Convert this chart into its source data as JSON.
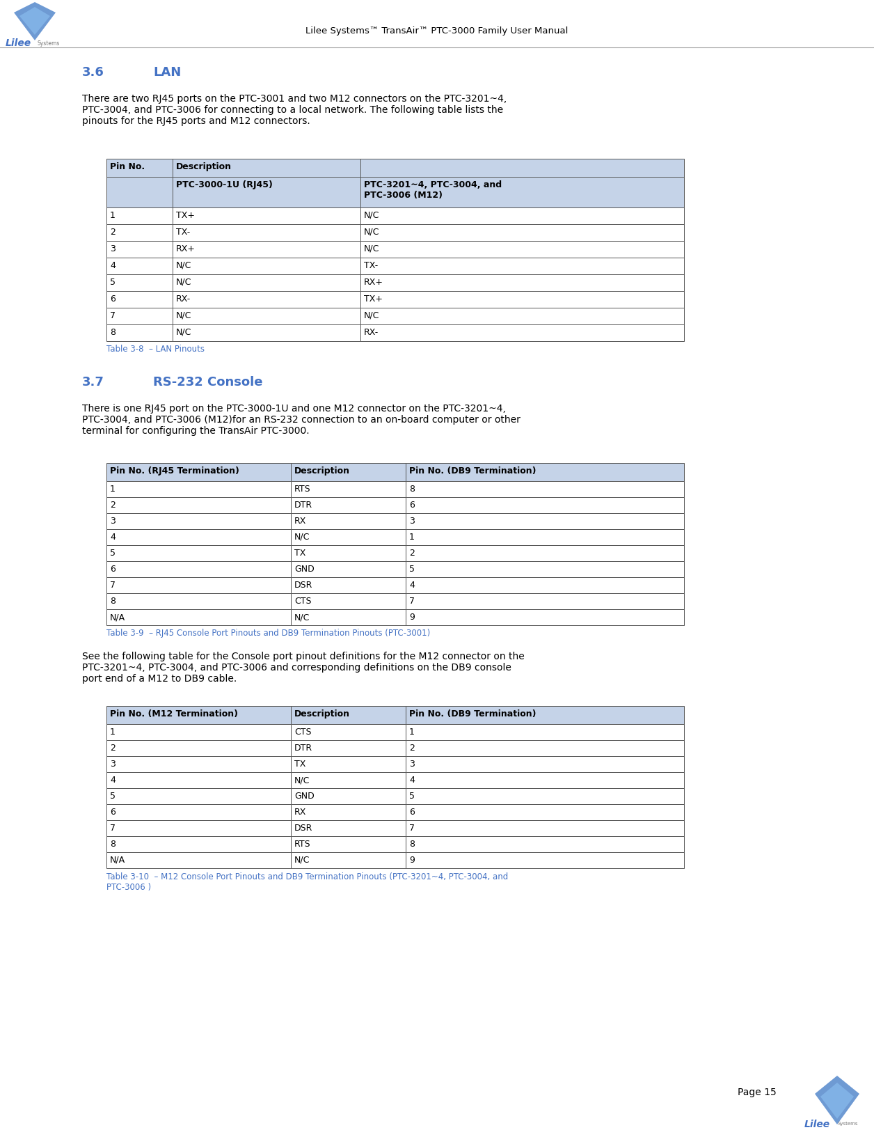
{
  "header_text": "Lilee Systems™ TransAir™ PTC-3000 Family User Manual",
  "page_number": "Page 15",
  "section_36_title": "3.6        LAN",
  "section_36_body": "There are two RJ45 ports on the PTC-3001 and two M12 connectors on the PTC-3201~4,\nPTC-3004, and PTC-3006 for connecting to a local network. The following table lists the\npinouts for the RJ45 ports and M12 connectors.",
  "table1_header_row1_col0": "Pin No.",
  "table1_header_row1_col1": "Description",
  "table1_header_row2_col1": "PTC-3000-1U (RJ45)",
  "table1_header_row2_col2": "PTC-3201~4, PTC-3004, and\nPTC-3006 (M12)",
  "table1_data": [
    [
      "1",
      "TX+",
      "N/C"
    ],
    [
      "2",
      "TX-",
      "N/C"
    ],
    [
      "3",
      "RX+",
      "N/C"
    ],
    [
      "4",
      "N/C",
      "TX-"
    ],
    [
      "5",
      "N/C",
      "RX+"
    ],
    [
      "6",
      "RX-",
      "TX+"
    ],
    [
      "7",
      "N/C",
      "N/C"
    ],
    [
      "8",
      "N/C",
      "RX-"
    ]
  ],
  "table1_caption": "Table 3-8  – LAN Pinouts",
  "section_37_title": "3.7        RS-232 Console",
  "section_37_body": "There is one RJ45 port on the PTC-3000-1U and one M12 connector on the PTC-3201~4,\nPTC-3004, and PTC-3006 (M12)for an RS-232 connection to an on-board computer or other\nterminal for configuring the TransAir PTC-3000.",
  "table2_header": [
    "Pin No. (RJ45 Termination)",
    "Description",
    "Pin No. (DB9 Termination)"
  ],
  "table2_data": [
    [
      "1",
      "RTS",
      "8"
    ],
    [
      "2",
      "DTR",
      "6"
    ],
    [
      "3",
      "RX",
      "3"
    ],
    [
      "4",
      "N/C",
      "1"
    ],
    [
      "5",
      "TX",
      "2"
    ],
    [
      "6",
      "GND",
      "5"
    ],
    [
      "7",
      "DSR",
      "4"
    ],
    [
      "8",
      "CTS",
      "7"
    ],
    [
      "N/A",
      "N/C",
      "9"
    ]
  ],
  "table2_caption": "Table 3-9  – RJ45 Console Port Pinouts and DB9 Termination Pinouts (PTC-3001)",
  "section_37_body2": "See the following table for the Console port pinout definitions for the M12 connector on the\nPTC-3201~4, PTC-3004, and PTC-3006 and corresponding definitions on the DB9 console\nport end of a M12 to DB9 cable.",
  "table3_header": [
    "Pin No. (M12 Termination)",
    "Description",
    "Pin No. (DB9 Termination)"
  ],
  "table3_data": [
    [
      "1",
      "CTS",
      "1"
    ],
    [
      "2",
      "DTR",
      "2"
    ],
    [
      "3",
      "TX",
      "3"
    ],
    [
      "4",
      "N/C",
      "4"
    ],
    [
      "5",
      "GND",
      "5"
    ],
    [
      "6",
      "RX",
      "6"
    ],
    [
      "7",
      "DSR",
      "7"
    ],
    [
      "8",
      "RTS",
      "8"
    ],
    [
      "N/A",
      "N/C",
      "9"
    ]
  ],
  "table3_caption": "Table 3-10  – M12 Console Port Pinouts and DB9 Termination Pinouts (PTC-3201~4, PTC-3004, and\nPTC-3006 )",
  "blue_color": "#4472C4",
  "header_bg": "#C5D3E8",
  "table_border": "#555555",
  "text_color": "#000000",
  "white": "#FFFFFF",
  "caption_color": "#4472C4",
  "page_bg": "#FFFFFF"
}
